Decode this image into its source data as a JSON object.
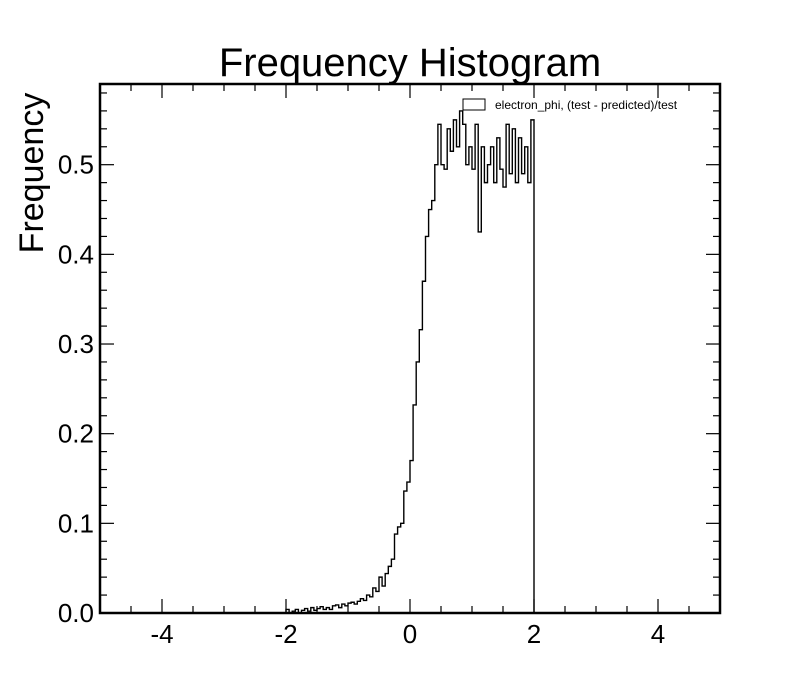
{
  "chart_data": {
    "type": "histogram",
    "title": "Frequency Histogram",
    "xlabel": "",
    "ylabel": "Frequency",
    "xlim": [
      -5,
      5
    ],
    "ylim": [
      0,
      0.59
    ],
    "x_ticks": [
      -4,
      -2,
      0,
      2,
      4
    ],
    "x_tick_labels": [
      "-4",
      "-2",
      "0",
      "2",
      "4"
    ],
    "y_ticks": [
      0.0,
      0.1,
      0.2,
      0.3,
      0.4,
      0.5
    ],
    "y_tick_labels": [
      "0.0",
      "0.1",
      "0.2",
      "0.3",
      "0.4",
      "0.5"
    ],
    "grid": false,
    "legend_position": "top-right",
    "series": [
      {
        "name": "electron_phi, (test - predicted)/test",
        "color": "#000000",
        "bin_start": -2.0,
        "bin_width": 0.05,
        "values": [
          0.004,
          0.0,
          0.002,
          0.004,
          0.0,
          0.003,
          0.005,
          0.002,
          0.006,
          0.003,
          0.005,
          0.007,
          0.004,
          0.006,
          0.004,
          0.008,
          0.009,
          0.006,
          0.01,
          0.008,
          0.011,
          0.012,
          0.01,
          0.013,
          0.016,
          0.014,
          0.02,
          0.018,
          0.028,
          0.024,
          0.04,
          0.03,
          0.044,
          0.052,
          0.06,
          0.088,
          0.096,
          0.1,
          0.136,
          0.146,
          0.17,
          0.232,
          0.28,
          0.316,
          0.37,
          0.42,
          0.45,
          0.46,
          0.5,
          0.545,
          0.5,
          0.495,
          0.54,
          0.515,
          0.55,
          0.52,
          0.56,
          0.545,
          0.5,
          0.52,
          0.495,
          0.545,
          0.425,
          0.52,
          0.48,
          0.5,
          0.52,
          0.48,
          0.53,
          0.495,
          0.475,
          0.545,
          0.49,
          0.54,
          0.48,
          0.53,
          0.49,
          0.52,
          0.48,
          0.55
        ]
      }
    ]
  }
}
